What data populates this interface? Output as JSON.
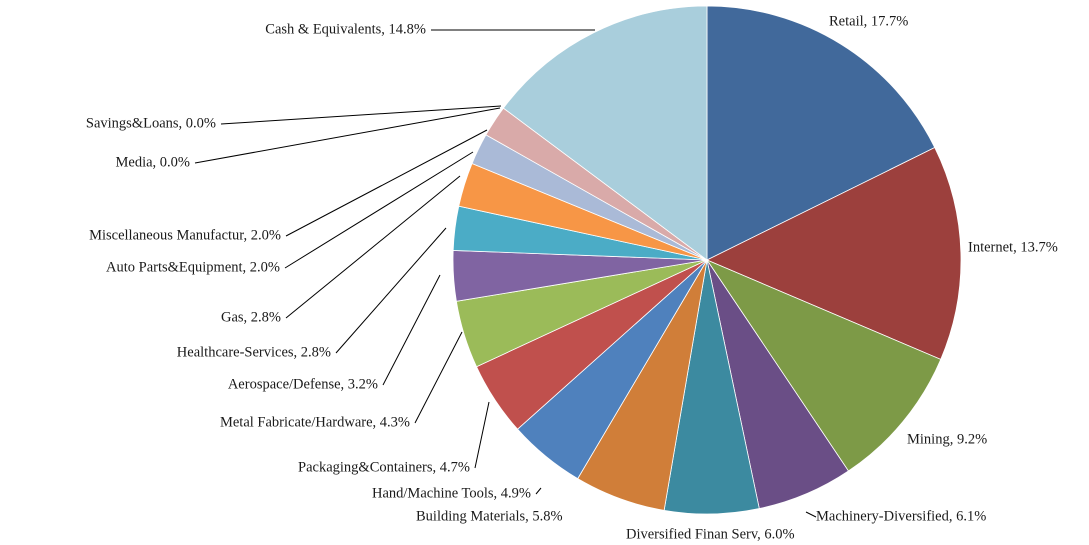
{
  "chart_data": {
    "type": "pie",
    "title": "",
    "start_angle_deg": 0,
    "direction": "clockwise",
    "slices": [
      {
        "label": "Retail",
        "value": 17.7,
        "display": "Retail, 17.7%",
        "color": "#41699b"
      },
      {
        "label": "Internet",
        "value": 13.7,
        "display": "Internet, 13.7%",
        "color": "#9c403d"
      },
      {
        "label": "Mining",
        "value": 9.2,
        "display": "Mining, 9.2%",
        "color": "#7d9a47"
      },
      {
        "label": "Machinery-Diversified",
        "value": 6.1,
        "display": "Machinery-Diversified, 6.1%",
        "color": "#6a4e86"
      },
      {
        "label": "Diversified Finan Serv",
        "value": 6.0,
        "display": "Diversified Finan Serv, 6.0%",
        "color": "#3c8aa0"
      },
      {
        "label": "Building Materials",
        "value": 5.8,
        "display": "Building Materials, 5.8%",
        "color": "#d07e39"
      },
      {
        "label": "Hand/Machine Tools",
        "value": 4.9,
        "display": "Hand/Machine Tools, 4.9%",
        "color": "#4f81bd"
      },
      {
        "label": "Packaging&Containers",
        "value": 4.7,
        "display": "Packaging&Containers, 4.7%",
        "color": "#c0504d"
      },
      {
        "label": "Metal Fabricate/Hardware",
        "value": 4.3,
        "display": "Metal Fabricate/Hardware, 4.3%",
        "color": "#9bbb59"
      },
      {
        "label": "Aerospace/Defense",
        "value": 3.2,
        "display": "Aerospace/Defense, 3.2%",
        "color": "#8064a2"
      },
      {
        "label": "Healthcare-Services",
        "value": 2.8,
        "display": "Healthcare-Services, 2.8%",
        "color": "#4bacc6"
      },
      {
        "label": "Gas",
        "value": 2.8,
        "display": "Gas, 2.8%",
        "color": "#f79646"
      },
      {
        "label": "Auto Parts&Equipment",
        "value": 2.0,
        "display": "Auto Parts&Equipment, 2.0%",
        "color": "#aabad7"
      },
      {
        "label": "Miscellaneous Manufactur",
        "value": 2.0,
        "display": "Miscellaneous Manufactur, 2.0%",
        "color": "#d9aaa9"
      },
      {
        "label": "Media",
        "value": 0.0,
        "display": "Media, 0.0%",
        "color": "#c6d5a9"
      },
      {
        "label": "Savings&Loans",
        "value": 0.0,
        "display": "Savings&Loans, 0.0%",
        "color": "#bdb0cf"
      },
      {
        "label": "Cash & Equivalents",
        "value": 14.8,
        "display": "Cash & Equivalents, 14.8%",
        "color": "#a9cedc"
      }
    ]
  }
}
